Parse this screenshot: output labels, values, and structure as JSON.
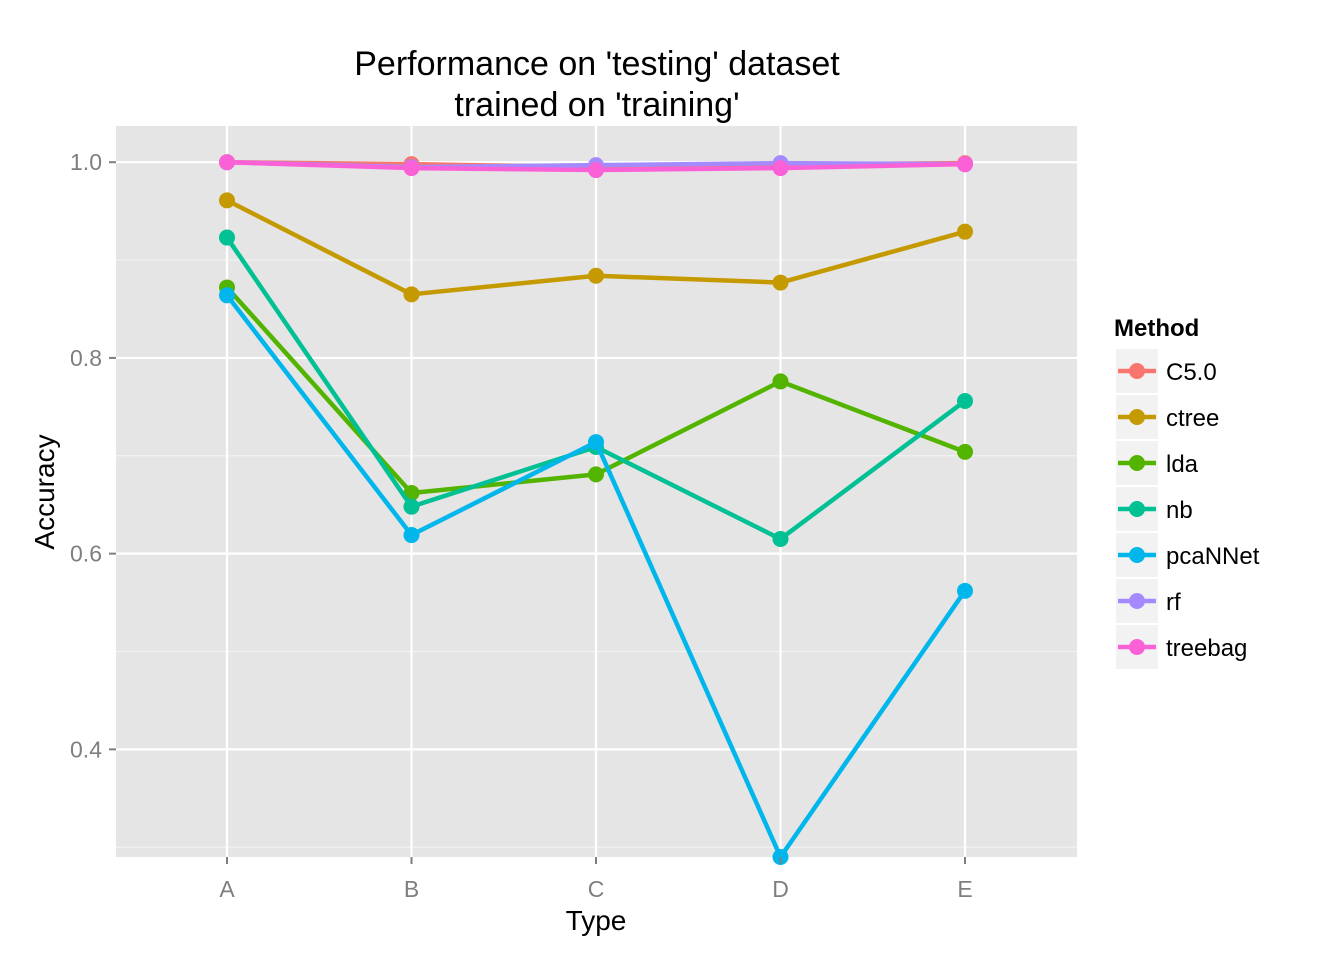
{
  "chart_data": {
    "type": "line",
    "title_line1": "Performance on 'testing' dataset",
    "title_line2": "trained on 'training'",
    "xlabel": "Type",
    "ylabel": "Accuracy",
    "categories": [
      "A",
      "B",
      "C",
      "D",
      "E"
    ],
    "ylim": [
      0.29,
      1.037
    ],
    "y_ticks": [
      0.4,
      0.6,
      0.8,
      1.0
    ],
    "y_tick_labels": [
      "0.4",
      "0.6",
      "0.8",
      "1.0"
    ],
    "grid": true,
    "legend_title": "Method",
    "legend_position": "right",
    "series": [
      {
        "name": "C5.0",
        "color": "#F8766D",
        "values": [
          1.0,
          0.998,
          0.995,
          0.998,
          0.999
        ]
      },
      {
        "name": "ctree",
        "color": "#C49A00",
        "values": [
          0.961,
          0.865,
          0.884,
          0.877,
          0.929
        ]
      },
      {
        "name": "lda",
        "color": "#53B400",
        "values": [
          0.872,
          0.662,
          0.681,
          0.776,
          0.704
        ]
      },
      {
        "name": "nb",
        "color": "#00C094",
        "values": [
          0.923,
          0.648,
          0.709,
          0.615,
          0.756
        ]
      },
      {
        "name": "pcaNNet",
        "color": "#00B6EB",
        "values": [
          0.864,
          0.619,
          0.714,
          0.29,
          0.562
        ]
      },
      {
        "name": "rf",
        "color": "#A58AFF",
        "values": [
          1.0,
          0.995,
          0.997,
          0.999,
          0.998
        ]
      },
      {
        "name": "treebag",
        "color": "#FB61D7",
        "values": [
          1.0,
          0.994,
          0.992,
          0.994,
          0.998
        ]
      }
    ]
  }
}
